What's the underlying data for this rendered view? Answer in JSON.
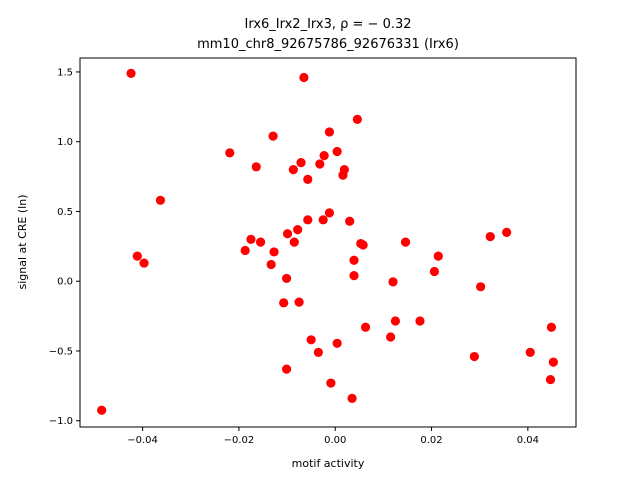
{
  "chart_data": {
    "type": "scatter",
    "title_line1": "Irx6_Irx2_Irx3, ρ = − 0.32",
    "title_line2": "mm10_chr8_92675786_92676331 (Irx6)",
    "xlabel": "motif activity",
    "ylabel": "signal at CRE (ln)",
    "xlim": [
      -0.053,
      0.05
    ],
    "ylim": [
      -1.045,
      1.6
    ],
    "x_ticks": [
      -0.04,
      -0.02,
      0.0,
      0.02,
      0.04
    ],
    "x_tick_labels": [
      "−0.04",
      "−0.02",
      "0.00",
      "0.02",
      "0.04"
    ],
    "y_ticks": [
      -1.0,
      -0.5,
      0.0,
      0.5,
      1.0,
      1.5
    ],
    "y_tick_labels": [
      "−1.0",
      "−0.5",
      "0.0",
      "0.5",
      "1.0",
      "1.5"
    ],
    "marker_color": "#ff0000",
    "points": [
      {
        "x": -0.0424,
        "y": 1.49
      },
      {
        "x": -0.0065,
        "y": 1.46
      },
      {
        "x": 0.0046,
        "y": 1.16
      },
      {
        "x": -0.0129,
        "y": 1.04
      },
      {
        "x": -0.0012,
        "y": 1.07
      },
      {
        "x": -0.0219,
        "y": 0.92
      },
      {
        "x": 0.0004,
        "y": 0.93
      },
      {
        "x": -0.0023,
        "y": 0.9
      },
      {
        "x": -0.0164,
        "y": 0.82
      },
      {
        "x": -0.0071,
        "y": 0.85
      },
      {
        "x": -0.0032,
        "y": 0.84
      },
      {
        "x": -0.0087,
        "y": 0.8
      },
      {
        "x": 0.0019,
        "y": 0.8
      },
      {
        "x": -0.0057,
        "y": 0.73
      },
      {
        "x": 0.0016,
        "y": 0.76
      },
      {
        "x": -0.0363,
        "y": 0.58
      },
      {
        "x": -0.0012,
        "y": 0.49
      },
      {
        "x": -0.0057,
        "y": 0.44
      },
      {
        "x": -0.0025,
        "y": 0.44
      },
      {
        "x": 0.003,
        "y": 0.43
      },
      {
        "x": -0.0078,
        "y": 0.37
      },
      {
        "x": -0.0099,
        "y": 0.34
      },
      {
        "x": 0.0356,
        "y": 0.35
      },
      {
        "x": 0.0322,
        "y": 0.32
      },
      {
        "x": -0.0175,
        "y": 0.3
      },
      {
        "x": -0.0155,
        "y": 0.28
      },
      {
        "x": -0.0085,
        "y": 0.28
      },
      {
        "x": 0.0146,
        "y": 0.28
      },
      {
        "x": 0.0053,
        "y": 0.27
      },
      {
        "x": 0.0058,
        "y": 0.26
      },
      {
        "x": -0.0187,
        "y": 0.22
      },
      {
        "x": -0.0127,
        "y": 0.21
      },
      {
        "x": -0.0411,
        "y": 0.18
      },
      {
        "x": 0.0214,
        "y": 0.18
      },
      {
        "x": 0.0039,
        "y": 0.15
      },
      {
        "x": -0.0397,
        "y": 0.13
      },
      {
        "x": -0.0133,
        "y": 0.12
      },
      {
        "x": 0.0206,
        "y": 0.07
      },
      {
        "x": 0.0039,
        "y": 0.04
      },
      {
        "x": -0.0101,
        "y": 0.02
      },
      {
        "x": 0.012,
        "y": -0.005
      },
      {
        "x": 0.0302,
        "y": -0.04
      },
      {
        "x": -0.0107,
        "y": -0.155
      },
      {
        "x": -0.0075,
        "y": -0.15
      },
      {
        "x": 0.0125,
        "y": -0.285
      },
      {
        "x": 0.0176,
        "y": -0.285
      },
      {
        "x": 0.0063,
        "y": -0.33
      },
      {
        "x": 0.0449,
        "y": -0.33
      },
      {
        "x": 0.0115,
        "y": -0.4
      },
      {
        "x": -0.005,
        "y": -0.42
      },
      {
        "x": 0.0004,
        "y": -0.445
      },
      {
        "x": -0.0035,
        "y": -0.51
      },
      {
        "x": 0.0405,
        "y": -0.51
      },
      {
        "x": 0.0289,
        "y": -0.54
      },
      {
        "x": 0.0453,
        "y": -0.58
      },
      {
        "x": -0.0101,
        "y": -0.63
      },
      {
        "x": 0.0447,
        "y": -0.705
      },
      {
        "x": -0.0009,
        "y": -0.73
      },
      {
        "x": 0.0035,
        "y": -0.84
      },
      {
        "x": -0.0485,
        "y": -0.925
      }
    ]
  }
}
